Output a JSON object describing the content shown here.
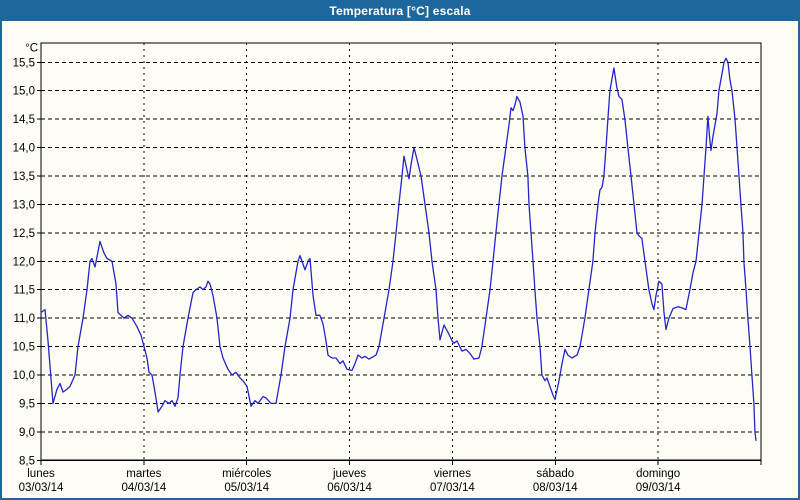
{
  "window": {
    "title": "Temperatura [°C] escala"
  },
  "colors": {
    "chrome": "#1e679c",
    "line": "#2525c8",
    "grid": "#000000",
    "text": "#000000",
    "panel": "#fdfdf5"
  },
  "chart_data": {
    "type": "line",
    "title": "Temperatura [°C] escala",
    "grid": "dashed",
    "legend": "none",
    "y_axis": {
      "label": "°C",
      "min": 8.5,
      "max": 15.5,
      "step": 0.5,
      "tick_labels": [
        "8,5",
        "9,0",
        "9,5",
        "10,0",
        "10,5",
        "11,0",
        "11,5",
        "12,0",
        "12,5",
        "13,0",
        "13,5",
        "14,0",
        "14,5",
        "15,0",
        "15,5"
      ]
    },
    "x_axis": {
      "unit": "days",
      "days": [
        {
          "name": "lunes",
          "date": "03/03/14"
        },
        {
          "name": "martes",
          "date": "04/03/14"
        },
        {
          "name": "miércoles",
          "date": "05/03/14"
        },
        {
          "name": "jueves",
          "date": "06/03/14"
        },
        {
          "name": "viernes",
          "date": "07/03/14"
        },
        {
          "name": "sábado",
          "date": "08/03/14"
        },
        {
          "name": "domingo",
          "date": "09/03/14"
        }
      ]
    },
    "series": [
      {
        "color": "#2525c8",
        "points": [
          [
            0,
            11.1
          ],
          [
            0.039,
            11.15
          ],
          [
            0.068,
            10.6
          ],
          [
            0.117,
            9.5
          ],
          [
            0.156,
            9.75
          ],
          [
            0.185,
            9.85
          ],
          [
            0.214,
            9.7
          ],
          [
            0.253,
            9.75
          ],
          [
            0.282,
            9.8
          ],
          [
            0.331,
            10
          ],
          [
            0.36,
            10.5
          ],
          [
            0.408,
            11
          ],
          [
            0.447,
            11.5
          ],
          [
            0.476,
            12
          ],
          [
            0.496,
            12.05
          ],
          [
            0.525,
            11.9
          ],
          [
            0.574,
            12.35
          ],
          [
            0.612,
            12.15
          ],
          [
            0.642,
            12.05
          ],
          [
            0.69,
            12
          ],
          [
            0.729,
            11.6
          ],
          [
            0.749,
            11.1
          ],
          [
            0.807,
            11
          ],
          [
            0.846,
            11.05
          ],
          [
            0.885,
            11
          ],
          [
            0.933,
            10.85
          ],
          [
            0.972,
            10.7
          ],
          [
            1.001,
            10.5
          ],
          [
            1.031,
            10.3
          ],
          [
            1.05,
            10.05
          ],
          [
            1.079,
            10
          ],
          [
            1.108,
            9.7
          ],
          [
            1.138,
            9.35
          ],
          [
            1.176,
            9.45
          ],
          [
            1.206,
            9.55
          ],
          [
            1.244,
            9.5
          ],
          [
            1.274,
            9.55
          ],
          [
            1.303,
            9.45
          ],
          [
            1.332,
            9.6
          ],
          [
            1.351,
            10
          ],
          [
            1.381,
            10.5
          ],
          [
            1.41,
            10.8
          ],
          [
            1.429,
            11
          ],
          [
            1.478,
            11.45
          ],
          [
            1.507,
            11.5
          ],
          [
            1.546,
            11.55
          ],
          [
            1.575,
            11.5
          ],
          [
            1.604,
            11.55
          ],
          [
            1.624,
            11.65
          ],
          [
            1.643,
            11.6
          ],
          [
            1.672,
            11.4
          ],
          [
            1.711,
            11
          ],
          [
            1.74,
            10.5
          ],
          [
            1.769,
            10.3
          ],
          [
            1.818,
            10.1
          ],
          [
            1.857,
            10
          ],
          [
            1.896,
            10.05
          ],
          [
            1.934,
            9.95
          ],
          [
            1.964,
            9.9
          ],
          [
            2.003,
            9.8
          ],
          [
            2.042,
            9.45
          ],
          [
            2.081,
            9.55
          ],
          [
            2.11,
            9.5
          ],
          [
            2.158,
            9.62
          ],
          [
            2.187,
            9.6
          ],
          [
            2.236,
            9.5
          ],
          [
            2.285,
            9.5
          ],
          [
            2.314,
            9.8
          ],
          [
            2.333,
            10
          ],
          [
            2.372,
            10.5
          ],
          [
            2.421,
            11
          ],
          [
            2.45,
            11.5
          ],
          [
            2.499,
            12
          ],
          [
            2.518,
            12.1
          ],
          [
            2.547,
            11.95
          ],
          [
            2.567,
            11.85
          ],
          [
            2.596,
            12
          ],
          [
            2.615,
            12.05
          ],
          [
            2.644,
            11.4
          ],
          [
            2.674,
            11.05
          ],
          [
            2.712,
            11.05
          ],
          [
            2.742,
            10.9
          ],
          [
            2.771,
            10.6
          ],
          [
            2.79,
            10.35
          ],
          [
            2.829,
            10.3
          ],
          [
            2.868,
            10.3
          ],
          [
            2.907,
            10.2
          ],
          [
            2.936,
            10.25
          ],
          [
            2.975,
            10.1
          ],
          [
            3.023,
            10.08
          ],
          [
            3.053,
            10.2
          ],
          [
            3.082,
            10.35
          ],
          [
            3.121,
            10.3
          ],
          [
            3.15,
            10.33
          ],
          [
            3.189,
            10.28
          ],
          [
            3.228,
            10.32
          ],
          [
            3.257,
            10.35
          ],
          [
            3.286,
            10.5
          ],
          [
            3.335,
            11
          ],
          [
            3.383,
            11.5
          ],
          [
            3.422,
            12
          ],
          [
            3.451,
            12.5
          ],
          [
            3.48,
            13
          ],
          [
            3.51,
            13.5
          ],
          [
            3.529,
            13.85
          ],
          [
            3.558,
            13.6
          ],
          [
            3.578,
            13.45
          ],
          [
            3.597,
            13.7
          ],
          [
            3.626,
            14
          ],
          [
            3.655,
            13.8
          ],
          [
            3.694,
            13.5
          ],
          [
            3.733,
            13
          ],
          [
            3.772,
            12.5
          ],
          [
            3.801,
            12
          ],
          [
            3.84,
            11.5
          ],
          [
            3.86,
            11
          ],
          [
            3.879,
            10.62
          ],
          [
            3.918,
            10.88
          ],
          [
            3.966,
            10.72
          ],
          [
            3.996,
            10.6
          ],
          [
            4.015,
            10.56
          ],
          [
            4.044,
            10.6
          ],
          [
            4.093,
            10.42
          ],
          [
            4.132,
            10.45
          ],
          [
            4.171,
            10.38
          ],
          [
            4.209,
            10.28
          ],
          [
            4.258,
            10.3
          ],
          [
            4.287,
            10.5
          ],
          [
            4.326,
            11
          ],
          [
            4.365,
            11.5
          ],
          [
            4.394,
            12
          ],
          [
            4.423,
            12.5
          ],
          [
            4.452,
            13
          ],
          [
            4.482,
            13.5
          ],
          [
            4.52,
            14
          ],
          [
            4.55,
            14.4
          ],
          [
            4.569,
            14.7
          ],
          [
            4.589,
            14.65
          ],
          [
            4.608,
            14.75
          ],
          [
            4.627,
            14.9
          ],
          [
            4.657,
            14.8
          ],
          [
            4.686,
            14.55
          ],
          [
            4.705,
            14
          ],
          [
            4.734,
            13.5
          ],
          [
            4.744,
            13
          ],
          [
            4.764,
            12.5
          ],
          [
            4.783,
            12
          ],
          [
            4.802,
            11.5
          ],
          [
            4.822,
            11
          ],
          [
            4.851,
            10.5
          ],
          [
            4.87,
            10
          ],
          [
            4.9,
            9.9
          ],
          [
            4.919,
            9.95
          ],
          [
            4.948,
            9.8
          ],
          [
            4.977,
            9.65
          ],
          [
            4.997,
            9.57
          ],
          [
            5.036,
            9.9
          ],
          [
            5.065,
            10.2
          ],
          [
            5.094,
            10.45
          ],
          [
            5.123,
            10.35
          ],
          [
            5.162,
            10.3
          ],
          [
            5.211,
            10.35
          ],
          [
            5.24,
            10.5
          ],
          [
            5.288,
            11
          ],
          [
            5.327,
            11.5
          ],
          [
            5.366,
            12
          ],
          [
            5.386,
            12.5
          ],
          [
            5.415,
            13
          ],
          [
            5.434,
            13.25
          ],
          [
            5.454,
            13.3
          ],
          [
            5.473,
            13.5
          ],
          [
            5.493,
            14
          ],
          [
            5.512,
            14.5
          ],
          [
            5.531,
            15
          ],
          [
            5.57,
            15.4
          ],
          [
            5.599,
            15.05
          ],
          [
            5.619,
            14.9
          ],
          [
            5.648,
            14.85
          ],
          [
            5.677,
            14.5
          ],
          [
            5.706,
            14
          ],
          [
            5.736,
            13.5
          ],
          [
            5.765,
            13
          ],
          [
            5.794,
            12.5
          ],
          [
            5.813,
            12.45
          ],
          [
            5.842,
            12.4
          ],
          [
            5.872,
            12
          ],
          [
            5.91,
            11.5
          ],
          [
            5.94,
            11.25
          ],
          [
            5.959,
            11.15
          ],
          [
            5.979,
            11.4
          ],
          [
            6.008,
            11.65
          ],
          [
            6.037,
            11.6
          ],
          [
            6.057,
            11.1
          ],
          [
            6.076,
            10.8
          ],
          [
            6.105,
            11
          ],
          [
            6.144,
            11.17
          ],
          [
            6.193,
            11.2
          ],
          [
            6.232,
            11.18
          ],
          [
            6.27,
            11.15
          ],
          [
            6.309,
            11.5
          ],
          [
            6.339,
            11.8
          ],
          [
            6.368,
            12
          ],
          [
            6.397,
            12.5
          ],
          [
            6.426,
            13
          ],
          [
            6.446,
            13.5
          ],
          [
            6.465,
            14
          ],
          [
            6.484,
            14.55
          ],
          [
            6.504,
            14.1
          ],
          [
            6.514,
            13.95
          ],
          [
            6.533,
            14.2
          ],
          [
            6.572,
            14.6
          ],
          [
            6.591,
            15
          ],
          [
            6.621,
            15.3
          ],
          [
            6.64,
            15.5
          ],
          [
            6.66,
            15.57
          ],
          [
            6.679,
            15.5
          ],
          [
            6.698,
            15.2
          ],
          [
            6.718,
            15
          ],
          [
            6.747,
            14.5
          ],
          [
            6.767,
            14
          ],
          [
            6.786,
            13.5
          ],
          [
            6.805,
            13
          ],
          [
            6.825,
            12.5
          ],
          [
            6.834,
            12
          ],
          [
            6.854,
            11.5
          ],
          [
            6.873,
            11
          ],
          [
            6.893,
            10.5
          ],
          [
            6.912,
            10
          ],
          [
            6.931,
            9.5
          ],
          [
            6.941,
            9
          ],
          [
            6.951,
            8.85
          ]
        ]
      }
    ]
  }
}
